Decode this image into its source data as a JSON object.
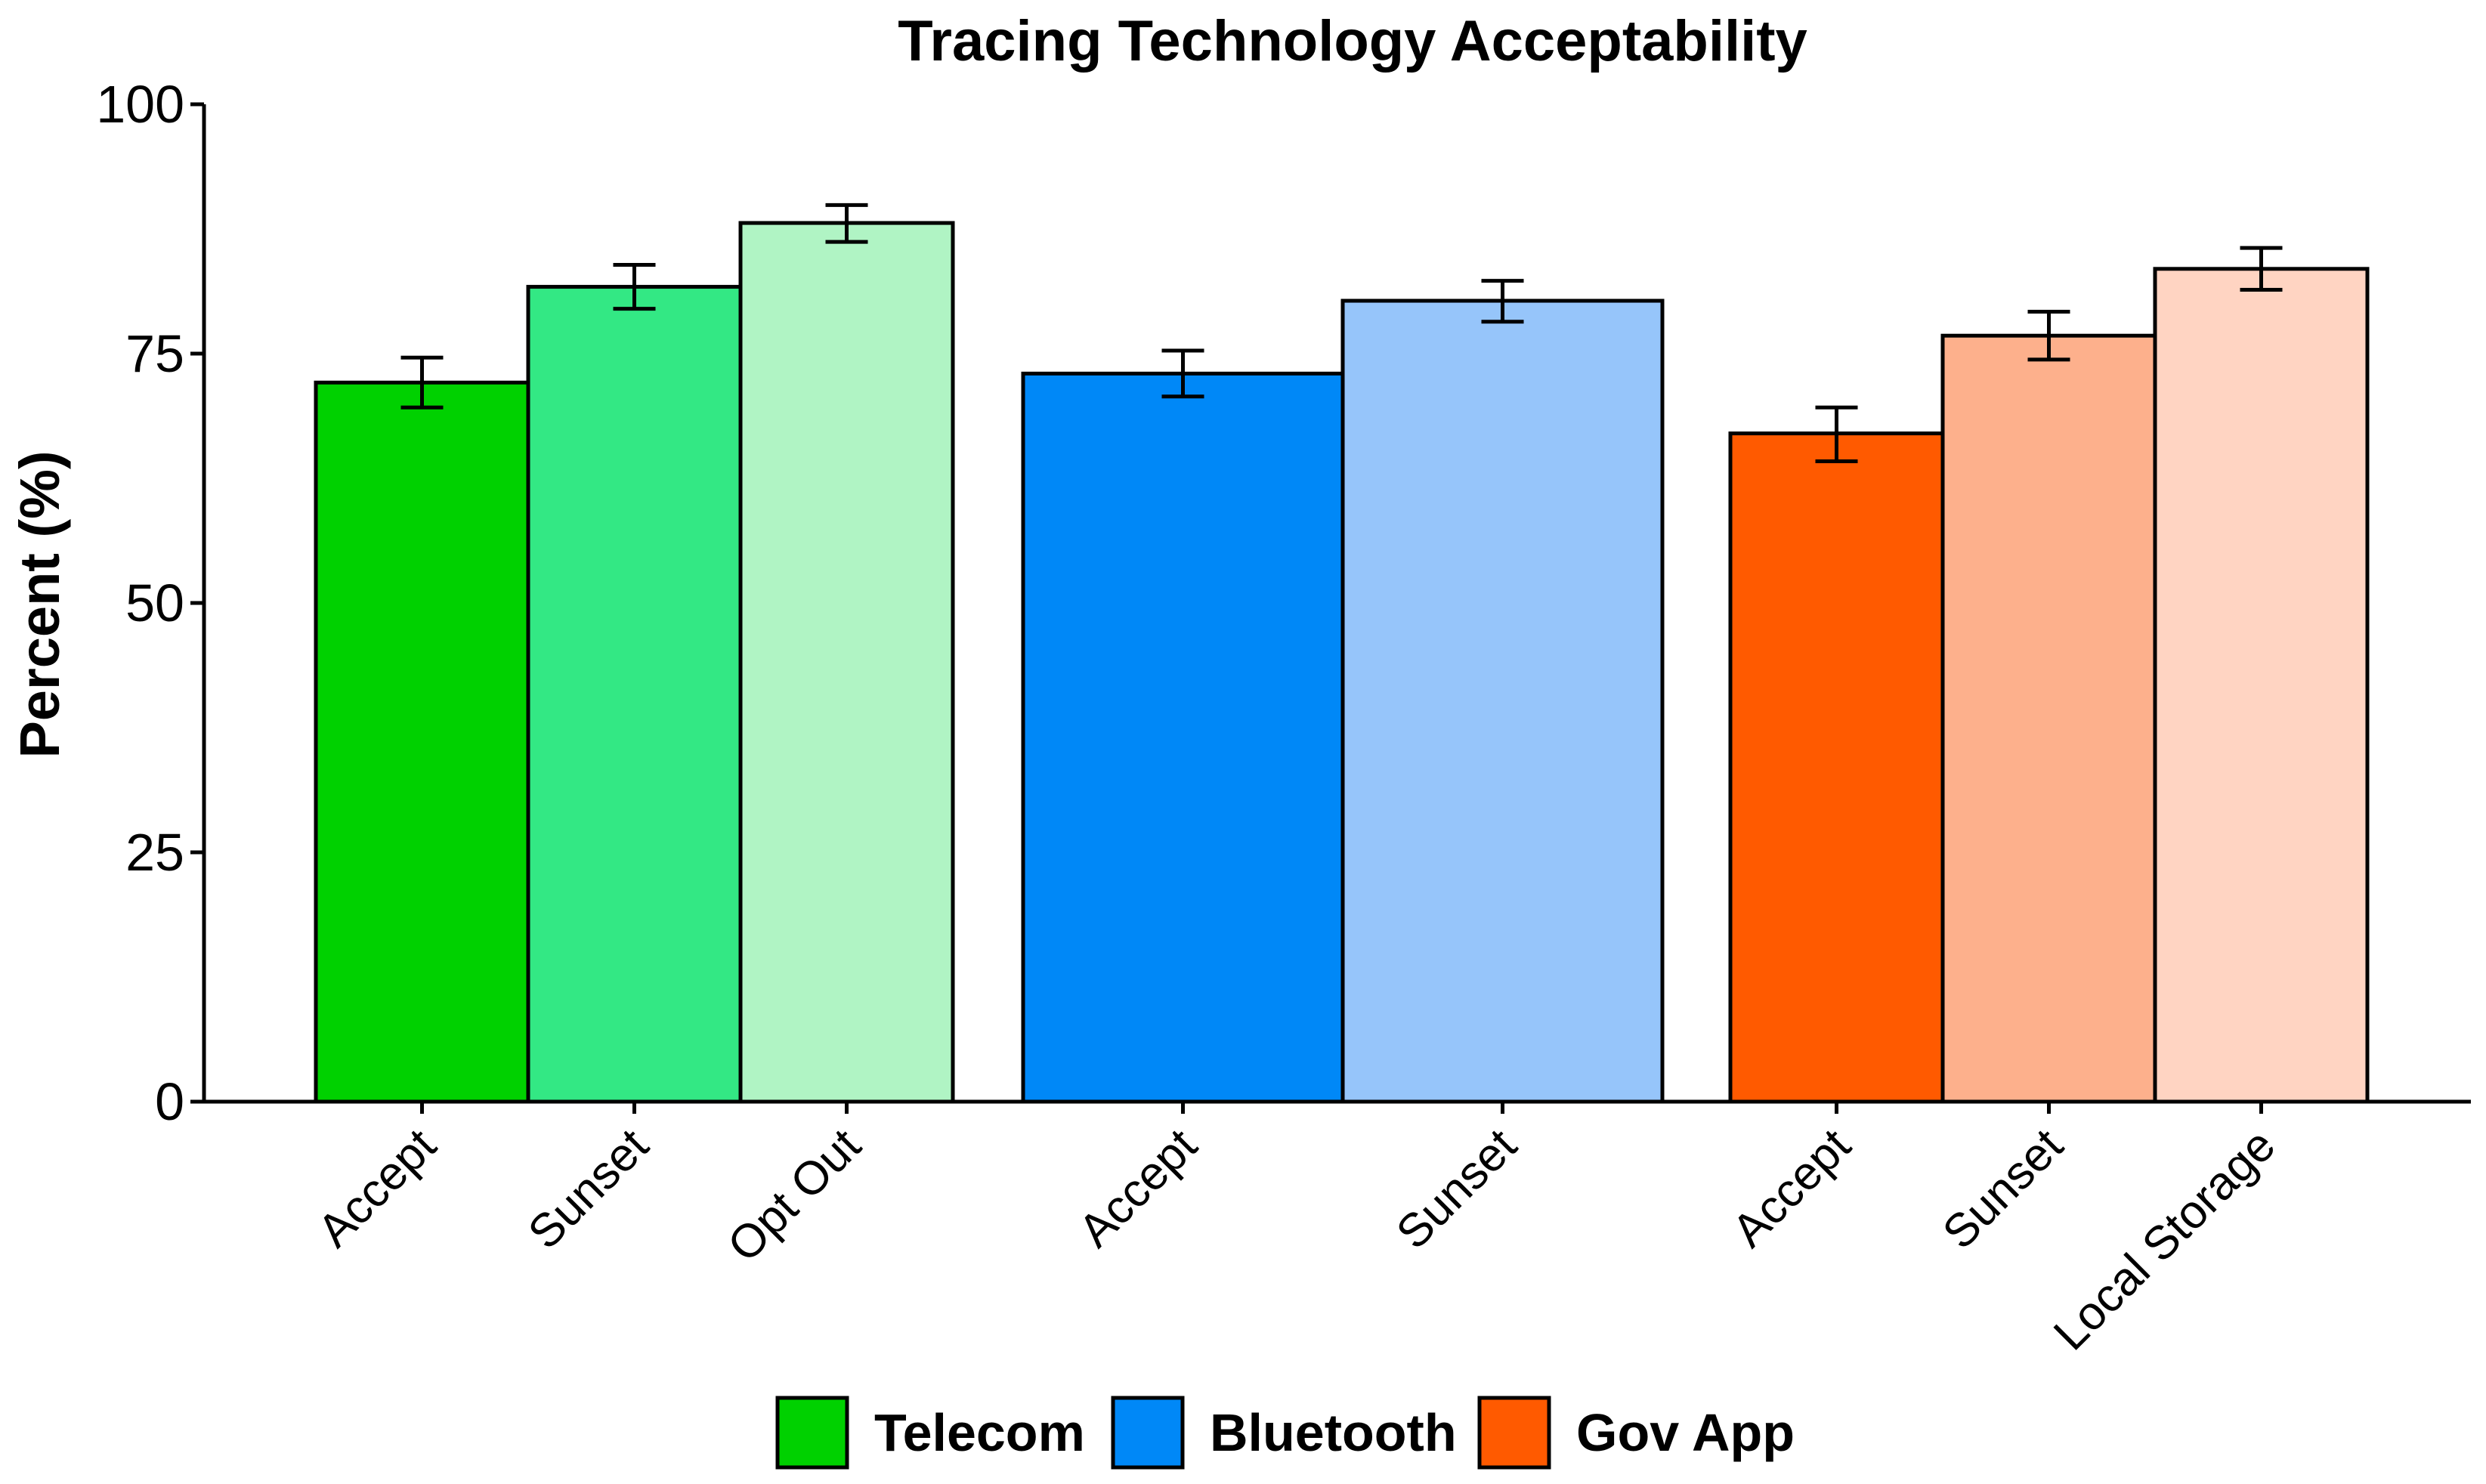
{
  "chart_data": {
    "type": "bar",
    "title": "Tracing Technology Acceptability",
    "xlabel": "",
    "ylabel": "Percent (%)",
    "ylim": [
      0,
      100
    ],
    "yticks": [
      "0",
      "25",
      "50",
      "75",
      "100"
    ],
    "grid": false,
    "legend_position": "bottom",
    "groups": [
      {
        "name": "Telecom",
        "bars": [
          {
            "category": "Accept",
            "value": 72.1,
            "err_low": 69.6,
            "err_high": 74.6,
            "color": "#00d100"
          },
          {
            "category": "Sunset",
            "value": 81.7,
            "err_low": 79.5,
            "err_high": 83.9,
            "color": "#33e884"
          },
          {
            "category": "Opt Out",
            "value": 88.1,
            "err_low": 86.2,
            "err_high": 89.9,
            "color": "#b0f4c4"
          }
        ]
      },
      {
        "name": "Bluetooth",
        "bars": [
          {
            "category": "Accept",
            "value": 73.0,
            "err_low": 70.7,
            "err_high": 75.3,
            "color": "#0088f7"
          },
          {
            "category": "Sunset",
            "value": 80.3,
            "err_low": 78.2,
            "err_high": 82.3,
            "color": "#96c5fa"
          }
        ]
      },
      {
        "name": "Gov App",
        "bars": [
          {
            "category": "Accept",
            "value": 67.0,
            "err_low": 64.2,
            "err_high": 69.6,
            "color": "#ff5a00"
          },
          {
            "category": "Sunset",
            "value": 76.8,
            "err_low": 74.4,
            "err_high": 79.2,
            "color": "#fdb08c"
          },
          {
            "category": "Local Storage",
            "value": 83.5,
            "err_low": 81.4,
            "err_high": 85.6,
            "color": "#ffd4c2"
          }
        ]
      }
    ]
  },
  "legend": [
    {
      "label": "Telecom",
      "color": "#00d100"
    },
    {
      "label": "Bluetooth",
      "color": "#0088f7"
    },
    {
      "label": "Gov App",
      "color": "#ff5a00"
    }
  ]
}
